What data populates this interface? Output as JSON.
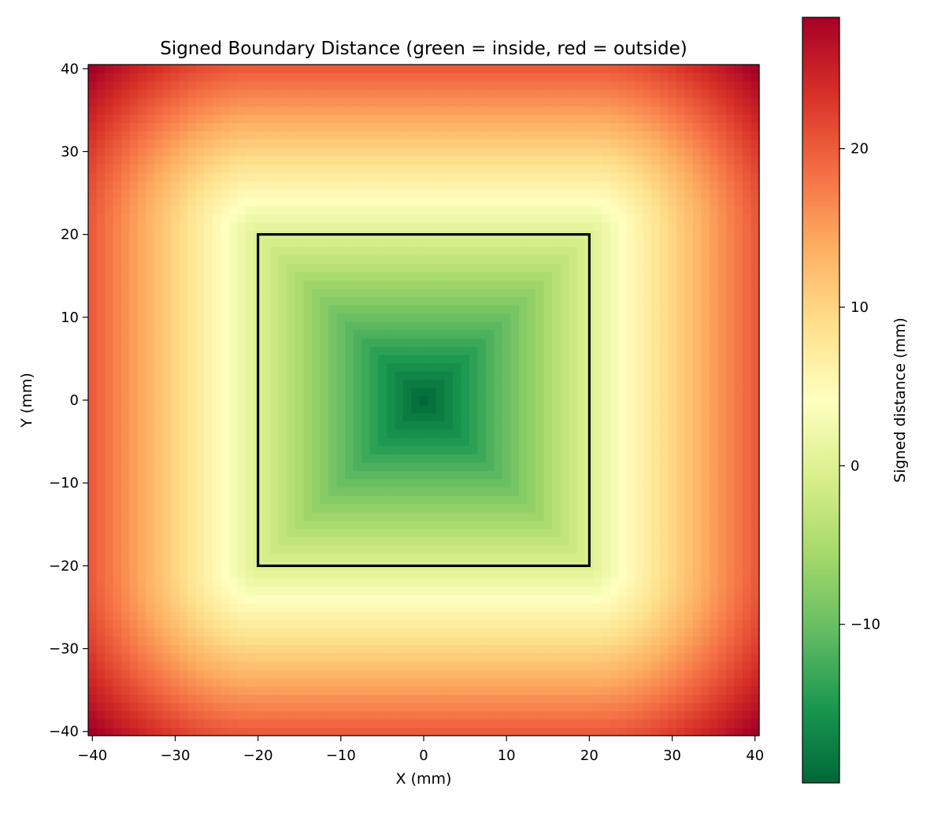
{
  "chart_data": {
    "type": "heatmap",
    "title": "Signed Boundary Distance (green = inside, red = outside)",
    "xlabel": "X (mm)",
    "ylabel": "Y (mm)",
    "xlim": [
      -40.5,
      40.5
    ],
    "ylim": [
      -40.5,
      40.5
    ],
    "xticks": [
      -40,
      -30,
      -20,
      -10,
      0,
      10,
      20,
      30,
      40
    ],
    "yticks": [
      -40,
      -30,
      -20,
      -10,
      0,
      10,
      20,
      30,
      40
    ],
    "xtick_labels": [
      "−40",
      "−30",
      "−20",
      "−10",
      "0",
      "10",
      "20",
      "30",
      "40"
    ],
    "ytick_labels": [
      "−40",
      "−30",
      "−20",
      "−10",
      "0",
      "10",
      "20",
      "30",
      "40"
    ],
    "grid": {
      "x_min": -40,
      "x_max": 40,
      "y_min": -40,
      "y_max": 40,
      "step": 1
    },
    "field": "signed distance to square boundary",
    "boundary": {
      "shape": "square",
      "x": [
        -20,
        20
      ],
      "y": [
        -20,
        20
      ],
      "color": "#000000"
    },
    "colorbar": {
      "label": "Signed distance (mm)",
      "colormap": "RdYlGn_r",
      "range": [
        -20,
        28.28
      ],
      "ticks": [
        -10,
        0,
        10,
        20
      ],
      "tick_labels": [
        "−10",
        "0",
        "10",
        "20"
      ]
    },
    "grid_lines": false
  }
}
